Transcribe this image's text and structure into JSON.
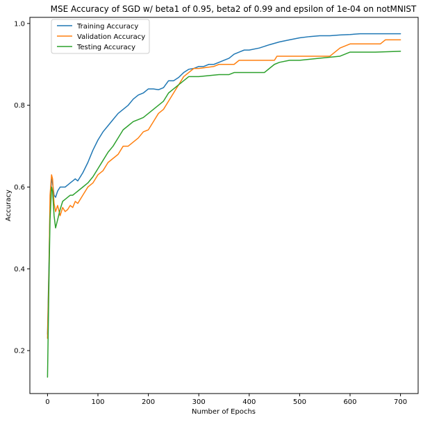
{
  "chart_data": {
    "type": "line",
    "title": "MSE Accuracy of SGD w/ beta1 of 0.95, beta2 of 0.99 and epsilon of 1e-04 on notMNIST",
    "xlabel": "Number of Epochs",
    "ylabel": "Accuracy",
    "xlim": [
      -35,
      735
    ],
    "ylim": [
      0.095,
      1.015
    ],
    "xticks": [
      0,
      100,
      200,
      300,
      400,
      500,
      600,
      700
    ],
    "yticks": [
      0.2,
      0.4,
      0.6,
      0.8,
      1.0
    ],
    "ytick_labels": [
      "0.2",
      "0.4",
      "0.6",
      "0.8",
      "1.0"
    ],
    "grid": false,
    "legend_position": "top-left",
    "series": [
      {
        "name": "Training Accuracy",
        "color": "#1f77b4",
        "points": [
          [
            0,
            0.24
          ],
          [
            3,
            0.42
          ],
          [
            5,
            0.55
          ],
          [
            8,
            0.62
          ],
          [
            10,
            0.61
          ],
          [
            13,
            0.58
          ],
          [
            16,
            0.575
          ],
          [
            20,
            0.59
          ],
          [
            25,
            0.6
          ],
          [
            30,
            0.6
          ],
          [
            35,
            0.6
          ],
          [
            40,
            0.605
          ],
          [
            45,
            0.61
          ],
          [
            50,
            0.615
          ],
          [
            55,
            0.62
          ],
          [
            60,
            0.615
          ],
          [
            70,
            0.635
          ],
          [
            80,
            0.66
          ],
          [
            90,
            0.69
          ],
          [
            100,
            0.715
          ],
          [
            110,
            0.735
          ],
          [
            120,
            0.75
          ],
          [
            130,
            0.765
          ],
          [
            140,
            0.78
          ],
          [
            150,
            0.79
          ],
          [
            160,
            0.8
          ],
          [
            170,
            0.815
          ],
          [
            180,
            0.825
          ],
          [
            190,
            0.83
          ],
          [
            200,
            0.84
          ],
          [
            210,
            0.84
          ],
          [
            220,
            0.838
          ],
          [
            230,
            0.843
          ],
          [
            240,
            0.86
          ],
          [
            250,
            0.86
          ],
          [
            260,
            0.868
          ],
          [
            270,
            0.88
          ],
          [
            280,
            0.888
          ],
          [
            290,
            0.89
          ],
          [
            300,
            0.895
          ],
          [
            310,
            0.895
          ],
          [
            320,
            0.9
          ],
          [
            330,
            0.9
          ],
          [
            340,
            0.905
          ],
          [
            350,
            0.91
          ],
          [
            360,
            0.915
          ],
          [
            370,
            0.925
          ],
          [
            380,
            0.93
          ],
          [
            390,
            0.935
          ],
          [
            400,
            0.935
          ],
          [
            420,
            0.94
          ],
          [
            440,
            0.948
          ],
          [
            460,
            0.955
          ],
          [
            480,
            0.96
          ],
          [
            500,
            0.965
          ],
          [
            520,
            0.968
          ],
          [
            540,
            0.97
          ],
          [
            560,
            0.97
          ],
          [
            580,
            0.972
          ],
          [
            600,
            0.973
          ],
          [
            620,
            0.975
          ],
          [
            640,
            0.975
          ],
          [
            660,
            0.975
          ],
          [
            680,
            0.975
          ],
          [
            700,
            0.975
          ]
        ]
      },
      {
        "name": "Validation Accuracy",
        "color": "#ff7f0e",
        "points": [
          [
            0,
            0.23
          ],
          [
            3,
            0.4
          ],
          [
            5,
            0.58
          ],
          [
            8,
            0.63
          ],
          [
            10,
            0.62
          ],
          [
            13,
            0.56
          ],
          [
            16,
            0.54
          ],
          [
            20,
            0.555
          ],
          [
            25,
            0.53
          ],
          [
            30,
            0.55
          ],
          [
            35,
            0.54
          ],
          [
            40,
            0.545
          ],
          [
            45,
            0.555
          ],
          [
            50,
            0.55
          ],
          [
            55,
            0.565
          ],
          [
            60,
            0.56
          ],
          [
            70,
            0.58
          ],
          [
            80,
            0.6
          ],
          [
            90,
            0.61
          ],
          [
            100,
            0.63
          ],
          [
            110,
            0.64
          ],
          [
            120,
            0.66
          ],
          [
            130,
            0.67
          ],
          [
            140,
            0.68
          ],
          [
            150,
            0.7
          ],
          [
            160,
            0.7
          ],
          [
            170,
            0.71
          ],
          [
            180,
            0.72
          ],
          [
            190,
            0.735
          ],
          [
            200,
            0.74
          ],
          [
            210,
            0.76
          ],
          [
            220,
            0.78
          ],
          [
            230,
            0.79
          ],
          [
            240,
            0.81
          ],
          [
            250,
            0.83
          ],
          [
            260,
            0.85
          ],
          [
            270,
            0.87
          ],
          [
            280,
            0.88
          ],
          [
            290,
            0.89
          ],
          [
            300,
            0.89
          ],
          [
            330,
            0.895
          ],
          [
            340,
            0.9
          ],
          [
            360,
            0.9
          ],
          [
            370,
            0.9
          ],
          [
            380,
            0.91
          ],
          [
            400,
            0.91
          ],
          [
            440,
            0.91
          ],
          [
            450,
            0.91
          ],
          [
            455,
            0.92
          ],
          [
            500,
            0.92
          ],
          [
            560,
            0.92
          ],
          [
            570,
            0.93
          ],
          [
            580,
            0.94
          ],
          [
            600,
            0.95
          ],
          [
            660,
            0.95
          ],
          [
            670,
            0.96
          ],
          [
            700,
            0.96
          ]
        ]
      },
      {
        "name": "Testing Accuracy",
        "color": "#2ca02c",
        "points": [
          [
            0,
            0.135
          ],
          [
            3,
            0.38
          ],
          [
            5,
            0.52
          ],
          [
            8,
            0.6
          ],
          [
            10,
            0.59
          ],
          [
            13,
            0.53
          ],
          [
            16,
            0.5
          ],
          [
            20,
            0.52
          ],
          [
            25,
            0.545
          ],
          [
            30,
            0.565
          ],
          [
            35,
            0.57
          ],
          [
            40,
            0.575
          ],
          [
            45,
            0.58
          ],
          [
            50,
            0.58
          ],
          [
            55,
            0.585
          ],
          [
            60,
            0.59
          ],
          [
            70,
            0.6
          ],
          [
            80,
            0.61
          ],
          [
            90,
            0.625
          ],
          [
            100,
            0.645
          ],
          [
            110,
            0.665
          ],
          [
            120,
            0.685
          ],
          [
            130,
            0.7
          ],
          [
            140,
            0.72
          ],
          [
            150,
            0.74
          ],
          [
            160,
            0.75
          ],
          [
            170,
            0.76
          ],
          [
            180,
            0.765
          ],
          [
            190,
            0.77
          ],
          [
            200,
            0.78
          ],
          [
            210,
            0.79
          ],
          [
            220,
            0.8
          ],
          [
            230,
            0.81
          ],
          [
            240,
            0.83
          ],
          [
            250,
            0.84
          ],
          [
            260,
            0.85
          ],
          [
            270,
            0.86
          ],
          [
            280,
            0.87
          ],
          [
            290,
            0.87
          ],
          [
            300,
            0.87
          ],
          [
            340,
            0.875
          ],
          [
            350,
            0.875
          ],
          [
            360,
            0.875
          ],
          [
            370,
            0.88
          ],
          [
            400,
            0.88
          ],
          [
            430,
            0.88
          ],
          [
            440,
            0.89
          ],
          [
            450,
            0.9
          ],
          [
            460,
            0.905
          ],
          [
            480,
            0.91
          ],
          [
            500,
            0.91
          ],
          [
            540,
            0.915
          ],
          [
            580,
            0.92
          ],
          [
            600,
            0.93
          ],
          [
            650,
            0.93
          ],
          [
            700,
            0.932
          ]
        ]
      }
    ]
  }
}
